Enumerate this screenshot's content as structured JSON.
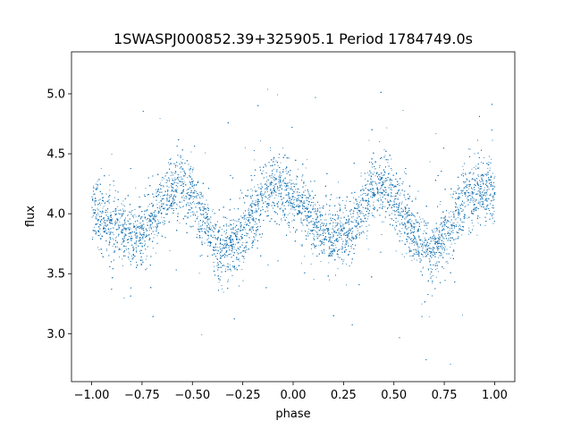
{
  "chart_data": {
    "type": "scatter",
    "title": "1SWASPJ000852.39+325905.1 Period 1784749.0s",
    "xlabel": "phase",
    "ylabel": "flux",
    "xlim": [
      -1.1,
      1.1
    ],
    "ylim": [
      2.6,
      5.35
    ],
    "grid": false,
    "legend": "none",
    "marker_color": "#1f77b4",
    "x_ticks": [
      -1.0,
      -0.75,
      -0.5,
      -0.25,
      0.0,
      0.25,
      0.5,
      0.75,
      1.0
    ],
    "x_tick_labels": [
      "−1.00",
      "−0.75",
      "−0.50",
      "−0.25",
      "0.00",
      "0.25",
      "0.50",
      "0.75",
      "1.00"
    ],
    "y_ticks": [
      3.0,
      3.5,
      4.0,
      4.5,
      5.0
    ],
    "y_tick_labels": [
      "3.0",
      "3.5",
      "4.0",
      "4.5",
      "5.0"
    ],
    "series": [
      {
        "trend": {
          "x": [
            -1.0,
            -0.95,
            -0.9,
            -0.85,
            -0.8,
            -0.75,
            -0.7,
            -0.65,
            -0.6,
            -0.55,
            -0.5,
            -0.45,
            -0.4,
            -0.35,
            -0.3,
            -0.25,
            -0.2,
            -0.15,
            -0.1,
            -0.05,
            0.0,
            0.05,
            0.1,
            0.15,
            0.2,
            0.25,
            0.3,
            0.35,
            0.4,
            0.45,
            0.5,
            0.55,
            0.6,
            0.65,
            0.7,
            0.75,
            0.8,
            0.85,
            0.9,
            0.95,
            1.0
          ],
          "y": [
            4.05,
            3.95,
            3.88,
            3.85,
            3.82,
            3.85,
            3.95,
            4.1,
            4.22,
            4.25,
            4.15,
            3.95,
            3.8,
            3.68,
            3.72,
            3.85,
            4.0,
            4.15,
            4.22,
            4.2,
            4.15,
            4.05,
            3.92,
            3.85,
            3.8,
            3.82,
            3.92,
            4.08,
            4.2,
            4.25,
            4.15,
            3.98,
            3.82,
            3.7,
            3.7,
            3.82,
            3.98,
            4.1,
            4.18,
            4.2,
            4.15
          ]
        },
        "scatter_sd": 0.13,
        "n_points": 16000
      }
    ]
  }
}
